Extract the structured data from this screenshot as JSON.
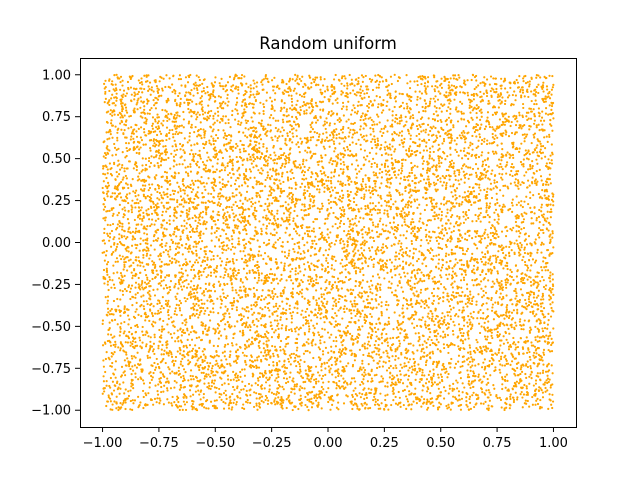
{
  "chart_data": {
    "type": "scatter",
    "title": "Random uniform",
    "xlabel": "",
    "ylabel": "",
    "xlim": [
      -1.1,
      1.1
    ],
    "ylim": [
      -1.1,
      1.1
    ],
    "grid": false,
    "legend": "none",
    "x_ticks": [
      "−1.00",
      "−0.75",
      "−0.50",
      "−0.25",
      "0.00",
      "0.25",
      "0.50",
      "0.75",
      "1.00"
    ],
    "y_ticks": [
      "−1.00",
      "−0.75",
      "−0.50",
      "−0.25",
      "0.00",
      "0.25",
      "0.50",
      "0.75",
      "1.00"
    ],
    "series": [
      {
        "color": "#ffa500",
        "distribution": "uniform",
        "count": 10000,
        "x_range": [
          -1,
          1
        ],
        "y_range": [
          -1,
          1
        ]
      }
    ]
  }
}
